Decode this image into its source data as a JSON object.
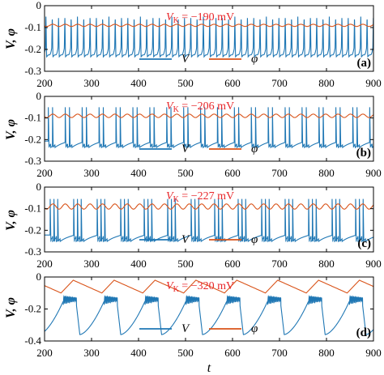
{
  "figure": {
    "xlabel": "t",
    "ylabel": "V, φ",
    "xticks": [
      "200",
      "300",
      "400",
      "500",
      "600",
      "700",
      "800",
      "900"
    ],
    "legend": {
      "v": "V",
      "phi": "φ"
    },
    "colors": {
      "v": "#1f77b4",
      "phi": "#d95319",
      "annotation": "#e8262a",
      "axes": "#000000"
    }
  },
  "chart_data": [
    {
      "type": "line",
      "panel_label": "(a)",
      "annotation_var": "V",
      "annotation_sub": "K",
      "annotation_value": " = −190 mV",
      "xlim": [
        200,
        900
      ],
      "ylim": [
        -0.3,
        0
      ],
      "yticks": [
        "0",
        "-0.1",
        "-0.2",
        "-0.3"
      ],
      "ytick_values": [
        0,
        -0.1,
        -0.2,
        -0.3
      ],
      "series": [
        {
          "name": "V",
          "pattern": "tonic_spiking",
          "spike_period": 13.4,
          "spikes_per_burst": 1,
          "peak": -0.05,
          "trough": -0.225,
          "first_spike": 203
        },
        {
          "name": "φ",
          "pattern": "ripple",
          "mean": -0.09,
          "amplitude": 0.005
        }
      ]
    },
    {
      "type": "line",
      "panel_label": "(b)",
      "annotation_var": "V",
      "annotation_sub": "K",
      "annotation_value": " = −206 mV",
      "xlim": [
        200,
        900
      ],
      "ylim": [
        -0.3,
        0
      ],
      "yticks": [
        "0",
        "-0.1",
        "-0.2",
        "-0.3"
      ],
      "ytick_values": [
        0,
        -0.1,
        -0.2,
        -0.3
      ],
      "series": [
        {
          "name": "V",
          "pattern": "doublet_bursting",
          "burst_period": 36,
          "spikes_per_burst": 2,
          "intra_spacing": 9,
          "peak": -0.05,
          "trough": -0.225,
          "first_spike": 208
        },
        {
          "name": "φ",
          "pattern": "ripple",
          "mean": -0.09,
          "amplitude": 0.008
        }
      ]
    },
    {
      "type": "line",
      "panel_label": "(c)",
      "annotation_var": "V",
      "annotation_sub": "K",
      "annotation_value": " = −227 mV",
      "xlim": [
        200,
        900
      ],
      "ylim": [
        -0.3,
        0
      ],
      "yticks": [
        "0",
        "-0.1",
        "-0.2",
        "-0.3"
      ],
      "ytick_values": [
        0,
        -0.1,
        -0.2,
        -0.3
      ],
      "series": [
        {
          "name": "V",
          "pattern": "triplet_bursting",
          "burst_period": 50,
          "spikes_per_burst": 3,
          "intra_spacing": 8,
          "peak": -0.055,
          "trough": -0.24,
          "first_spike": 212
        },
        {
          "name": "φ",
          "pattern": "ripple",
          "mean": -0.09,
          "amplitude": 0.012
        }
      ]
    },
    {
      "type": "line",
      "panel_label": "(d)",
      "annotation_var": "V",
      "annotation_sub": "K",
      "annotation_value": " = −320 mV",
      "xlim": [
        200,
        900
      ],
      "ylim": [
        -0.4,
        0
      ],
      "yticks": [
        "0",
        "-0.2",
        "-0.4"
      ],
      "ytick_values": [
        0,
        -0.2,
        -0.4
      ],
      "series": [
        {
          "name": "V",
          "pattern": "square_wave_bursting",
          "burst_period": 87,
          "burst_duration": 28,
          "oscillation_period": 2.6,
          "plateau_high": -0.12,
          "plateau_low": -0.18,
          "silent_trough": -0.36,
          "first_burst": 240
        },
        {
          "name": "φ",
          "pattern": "sawtooth",
          "min": -0.1,
          "max": -0.02,
          "rise_start": 235,
          "period": 87
        }
      ]
    }
  ]
}
